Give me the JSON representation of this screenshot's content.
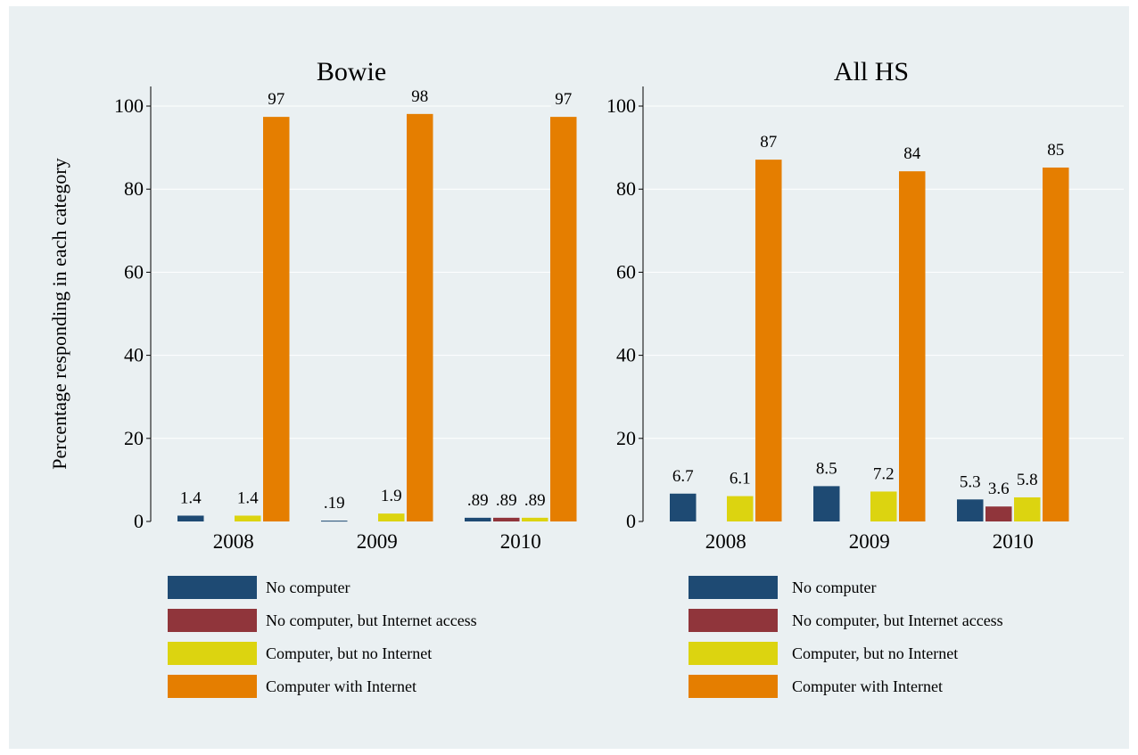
{
  "chart_data": [
    {
      "type": "bar",
      "title": "Bowie",
      "categories": [
        "2008",
        "2009",
        "2010"
      ],
      "ylabel": "Percentage responding in each category",
      "ylim": [
        0,
        100
      ],
      "yticks": [
        0,
        20,
        40,
        60,
        80,
        100
      ],
      "grid": true,
      "legend_position": "bottom",
      "series": [
        {
          "name": "No computer",
          "color": "#1e4a73",
          "values": [
            1.4,
            0.19,
            0.89
          ],
          "labels": [
            "1.4",
            ".19",
            ".89"
          ]
        },
        {
          "name": "No computer, but Internet access",
          "color": "#90353b",
          "values": [
            0,
            0,
            0.89
          ],
          "labels": [
            "",
            "",
            ".89"
          ]
        },
        {
          "name": "Computer, but no Internet",
          "color": "#dcd410",
          "values": [
            1.4,
            1.9,
            0.89
          ],
          "labels": [
            "1.4",
            "1.9",
            ".89"
          ]
        },
        {
          "name": "Computer with Internet",
          "color": "#e57e00",
          "values": [
            97.4,
            98.1,
            97.4
          ],
          "labels": [
            "97",
            "98",
            "97"
          ]
        }
      ]
    },
    {
      "type": "bar",
      "title": "All HS",
      "categories": [
        "2008",
        "2009",
        "2010"
      ],
      "ylabel": "",
      "ylim": [
        0,
        100
      ],
      "yticks": [
        0,
        20,
        40,
        60,
        80,
        100
      ],
      "grid": true,
      "legend_position": "bottom",
      "series": [
        {
          "name": "No computer",
          "color": "#1e4a73",
          "values": [
            6.7,
            8.5,
            5.3
          ],
          "labels": [
            "6.7",
            "8.5",
            "5.3"
          ]
        },
        {
          "name": "No computer, but Internet access",
          "color": "#90353b",
          "values": [
            0,
            0,
            3.6
          ],
          "labels": [
            "",
            "",
            "3.6"
          ]
        },
        {
          "name": "Computer, but no Internet",
          "color": "#dcd410",
          "values": [
            6.1,
            7.2,
            5.8
          ],
          "labels": [
            "6.1",
            "7.2",
            "5.8"
          ]
        },
        {
          "name": "Computer with Internet",
          "color": "#e57e00",
          "values": [
            87.1,
            84.3,
            85.2
          ],
          "labels": [
            "87",
            "84",
            "85"
          ]
        }
      ]
    }
  ]
}
